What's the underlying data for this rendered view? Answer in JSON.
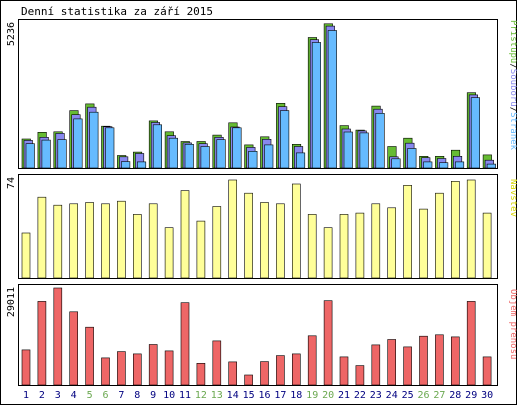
{
  "title": "Denní statistika za září 2015",
  "panels": {
    "hits": {
      "max_label": "5236",
      "legend": [
        "Přístupů",
        "Souborů",
        "Stránek"
      ],
      "legend_sep": "/"
    },
    "visits": {
      "max_label": "74",
      "legend": "Návštěv"
    },
    "traffic": {
      "max_label": "29011",
      "legend": "Objem přenosu"
    }
  },
  "colors": {
    "hits": "#66bb33",
    "files": "#8888ee",
    "pages": "#66bbff",
    "visits": "#ffff99",
    "kbytes": "#ee6666",
    "day_normal": "#000080",
    "day_weekend": "#6aa84f",
    "background": "#ffffff",
    "frame": "#000000"
  },
  "chart_data": [
    {
      "type": "bar",
      "title": "Denní statistika za září 2015",
      "categories": [
        "1",
        "2",
        "3",
        "4",
        "5",
        "6",
        "7",
        "8",
        "9",
        "10",
        "11",
        "12",
        "13",
        "14",
        "15",
        "16",
        "17",
        "18",
        "19",
        "20",
        "21",
        "22",
        "23",
        "24",
        "25",
        "26",
        "27",
        "28",
        "29",
        "30"
      ],
      "weekend_days": [
        "5",
        "6",
        "12",
        "13",
        "19",
        "20",
        "26",
        "27"
      ],
      "ylim": [
        0,
        5236
      ],
      "series": [
        {
          "name": "Přístupů",
          "values": [
            1040,
            1280,
            1300,
            2060,
            2300,
            1500,
            450,
            570,
            1690,
            1300,
            950,
            950,
            1180,
            1620,
            830,
            1120,
            2320,
            850,
            4680,
            5170,
            1520,
            1360,
            2220,
            770,
            1070,
            420,
            420,
            640,
            2700,
            470
          ]
        },
        {
          "name": "Souborů",
          "values": [
            990,
            1100,
            1240,
            1910,
            2180,
            1480,
            400,
            520,
            1630,
            1160,
            900,
            870,
            1100,
            1470,
            740,
            1030,
            2200,
            770,
            4600,
            5090,
            1400,
            1330,
            2110,
            400,
            890,
            370,
            340,
            420,
            2620,
            280
          ]
        },
        {
          "name": "Stránek",
          "values": [
            870,
            1000,
            1020,
            1760,
            2000,
            1440,
            230,
            220,
            1550,
            1070,
            850,
            770,
            1020,
            1440,
            600,
            830,
            2060,
            540,
            4500,
            4930,
            1290,
            1260,
            1960,
            330,
            700,
            220,
            190,
            220,
            2520,
            140
          ]
        }
      ]
    },
    {
      "type": "bar",
      "categories": [
        "1",
        "2",
        "3",
        "4",
        "5",
        "6",
        "7",
        "8",
        "9",
        "10",
        "11",
        "12",
        "13",
        "14",
        "15",
        "16",
        "17",
        "18",
        "19",
        "20",
        "21",
        "22",
        "23",
        "24",
        "25",
        "26",
        "27",
        "28",
        "29",
        "30"
      ],
      "ylim": [
        0,
        74
      ],
      "series": [
        {
          "name": "Návštěv",
          "values": [
            34,
            61,
            55,
            56,
            57,
            56,
            58,
            48,
            56,
            38,
            66,
            43,
            54,
            74,
            64,
            57,
            56,
            71,
            48,
            38,
            48,
            49,
            56,
            53,
            70,
            52,
            64,
            73,
            74,
            49
          ]
        }
      ]
    },
    {
      "type": "bar",
      "categories": [
        "1",
        "2",
        "3",
        "4",
        "5",
        "6",
        "7",
        "8",
        "9",
        "10",
        "11",
        "12",
        "13",
        "14",
        "15",
        "16",
        "17",
        "18",
        "19",
        "20",
        "21",
        "22",
        "23",
        "24",
        "25",
        "26",
        "27",
        "28",
        "29",
        "30"
      ],
      "ylim": [
        0,
        29011
      ],
      "series": [
        {
          "name": "Objem přenosu",
          "values": [
            10500,
            25000,
            29000,
            21900,
            17300,
            8100,
            10000,
            9300,
            12100,
            10200,
            24600,
            6500,
            13200,
            6900,
            3000,
            7000,
            8800,
            9300,
            14700,
            25200,
            8400,
            5800,
            12000,
            13600,
            11400,
            14600,
            15000,
            14400,
            25000,
            8400
          ]
        }
      ]
    }
  ]
}
